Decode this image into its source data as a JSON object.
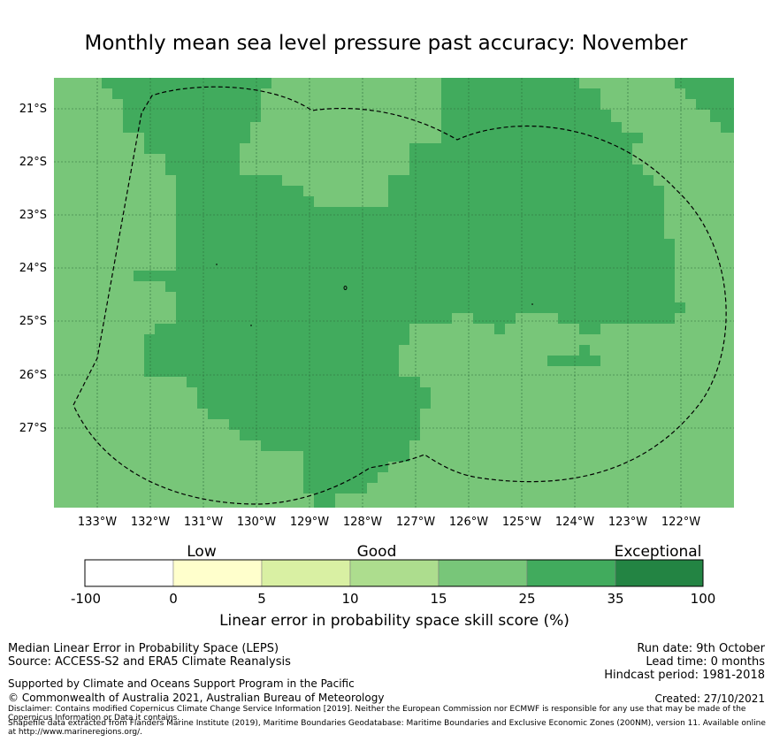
{
  "title": "Monthly mean sea level pressure past accuracy: November",
  "colors": {
    "ocean_good": "#78c679",
    "ocean_verygood": "#41ab5d",
    "grid": "#2c6b3a",
    "boundary": "#000000"
  },
  "map": {
    "lon_labels": [
      "133°W",
      "132°W",
      "131°W",
      "130°W",
      "129°W",
      "128°W",
      "127°W",
      "126°W",
      "125°W",
      "124°W",
      "123°W",
      "122°W"
    ],
    "lat_labels": [
      "21°S",
      "22°S",
      "23°S",
      "24°S",
      "25°S",
      "26°S",
      "27°S"
    ]
  },
  "colorbar": {
    "categories": [
      "Low",
      "Good",
      "Exceptional"
    ],
    "ticks": [
      "-100",
      "0",
      "5",
      "10",
      "15",
      "25",
      "35",
      "100"
    ],
    "segment_colors": [
      "#ffffff",
      "#ffffcc",
      "#d9f0a3",
      "#addd8e",
      "#78c679",
      "#41ab5d",
      "#238443"
    ],
    "label": "Linear error in probability space skill score (%)"
  },
  "footer": {
    "left1": "Median Linear Error in Probability Space (LEPS)",
    "left2": "Source: ACCESS-S2 and ERA5 Climate Reanalysis",
    "left3": "Supported by Climate and Oceans Support Program in the Pacific",
    "left4": "© Commonwealth of Australia 2021, Australian Bureau of Meteorology",
    "right1": "Run date: 9th October",
    "right2": "Lead time: 0 months",
    "right3": "Hindcast period: 1981-2018",
    "right4": "Created: 27/10/2021",
    "disclaimer1": "Disclaimer: Contains modified Copernicus Climate Change Service Information [2019]. Neither the European Commission nor ECMWF is responsible for any use that may be made of the Copernicus Information or Data it contains.",
    "disclaimer2": "Shapefile data extracted from Flanders Marine Institute (2019), Maritime Boundaries Geodatabase: Maritime Boundaries and Exclusive Economic Zones (200NM), version 11. Available online at http://www.marineregions.org/."
  }
}
